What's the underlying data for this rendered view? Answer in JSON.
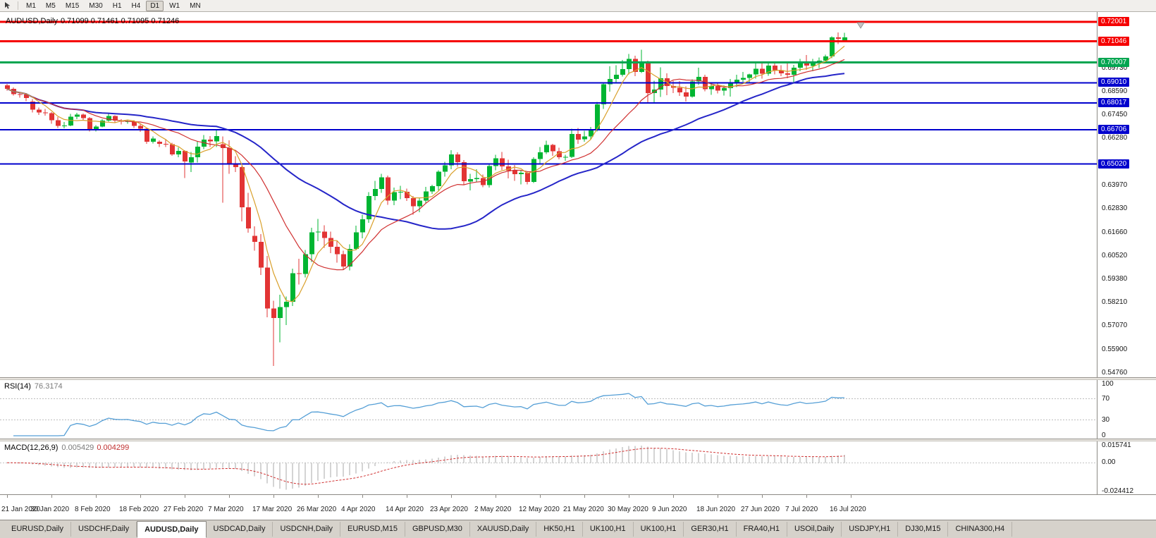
{
  "toolbar": {
    "timeframes": [
      "M1",
      "M5",
      "M15",
      "M30",
      "H1",
      "H4",
      "D1",
      "W1",
      "MN"
    ],
    "active": "D1"
  },
  "chart_header": {
    "symbol_info": "AUDUSD,Daily",
    "ohlc": "0.71099 0.71461 0.71095 0.71246"
  },
  "colors": {
    "bull": "#00b532",
    "bear": "#e23434",
    "ma_fast": "#d9a02b",
    "ma_mid": "#d03030",
    "ma_slow": "#2525c8",
    "rsi_line": "#559fd6",
    "macd_hist": "#a8a8a8",
    "macd_signal": "#d03030"
  },
  "levels": [
    {
      "label": "0.72001",
      "price": 0.72001,
      "color": "#f50000",
      "width": 3
    },
    {
      "label": "0.71046",
      "price": 0.71046,
      "color": "#f50000",
      "width": 3
    },
    {
      "label": "0.70007",
      "price": 0.70007,
      "color": "#00a550",
      "width": 3
    },
    {
      "label": "0.69010",
      "price": 0.6901,
      "color": "#0000cd",
      "width": 2
    },
    {
      "label": "0.68017",
      "price": 0.68017,
      "color": "#0000cd",
      "width": 2
    },
    {
      "label": "0.66706",
      "price": 0.66706,
      "color": "#0000cd",
      "width": 2
    },
    {
      "label": "0.65020",
      "price": 0.6502,
      "color": "#0000cd",
      "width": 2
    }
  ],
  "price_scale": [
    "0.69730",
    "0.68590",
    "0.67450",
    "0.66280",
    "0.63970",
    "0.62830",
    "0.61660",
    "0.60520",
    "0.59380",
    "0.58210",
    "0.57070",
    "0.55900",
    "0.54760"
  ],
  "rsi": {
    "name": "RSI(14)",
    "value": "76.3174",
    "scale": [
      "100",
      "70",
      "30",
      "0"
    ],
    "guides": [
      70,
      30
    ]
  },
  "macd": {
    "name": "MACD(12,26,9)",
    "main_value": "0.005429",
    "signal_value": "0.004299",
    "scale": [
      "0.015741",
      "0.00",
      "-0.024412"
    ]
  },
  "tabbar": {
    "active_index": 2,
    "tabs": [
      {
        "label": "EURUSD,Daily"
      },
      {
        "label": "USDCHF,Daily"
      },
      {
        "label": "AUDUSD,Daily"
      },
      {
        "label": "USDCAD,Daily"
      },
      {
        "label": "USDCNH,Daily"
      },
      {
        "label": "EURUSD,M15"
      },
      {
        "label": "GBPUSD,M30"
      },
      {
        "label": "XAUUSD,Daily"
      },
      {
        "label": "HK50,H1"
      },
      {
        "label": "UK100,H1"
      },
      {
        "label": "UK100,H1"
      },
      {
        "label": "GER30,H1"
      },
      {
        "label": "FRA40,H1"
      },
      {
        "label": "USOil,Daily"
      },
      {
        "label": "USDJPY,H1"
      },
      {
        "label": "DJ30,M15"
      },
      {
        "label": "CHINA300,H4"
      }
    ]
  },
  "chart_data": {
    "type": "candlestick",
    "title": "AUDUSD,Daily",
    "ylim": [
      0.5455,
      0.7249
    ],
    "rsi_range": [
      0,
      100
    ],
    "macd_range": [
      -0.024412,
      0.015741
    ],
    "date_labels": [
      "21 Jan 2020",
      "30 Jan 2020",
      "8 Feb 2020",
      "18 Feb 2020",
      "27 Feb 2020",
      "7 Mar 2020",
      "17 Mar 2020",
      "26 Mar 2020",
      "4 Apr 2020",
      "14 Apr 2020",
      "23 Apr 2020",
      "2 May 2020",
      "12 May 2020",
      "21 May 2020",
      "30 May 2020",
      "9 Jun 2020",
      "18 Jun 2020",
      "27 Jun 2020",
      "7 Jul 2020",
      "16 Jul 2020"
    ],
    "candles": [
      [
        0.6888,
        0.6895,
        0.6862,
        0.6872
      ],
      [
        0.6872,
        0.6878,
        0.6838,
        0.6845
      ],
      [
        0.6845,
        0.6855,
        0.6828,
        0.6843
      ],
      [
        0.6843,
        0.685,
        0.6811,
        0.6827
      ],
      [
        0.681,
        0.6822,
        0.6755,
        0.6769
      ],
      [
        0.6769,
        0.6779,
        0.6744,
        0.6756
      ],
      [
        0.6756,
        0.6772,
        0.674,
        0.6752
      ],
      [
        0.6752,
        0.6758,
        0.67,
        0.6717
      ],
      [
        0.6717,
        0.6733,
        0.668,
        0.669
      ],
      [
        0.669,
        0.6708,
        0.6678,
        0.6691
      ],
      [
        0.6691,
        0.6749,
        0.6688,
        0.6734
      ],
      [
        0.6734,
        0.6754,
        0.6723,
        0.6745
      ],
      [
        0.6745,
        0.675,
        0.6715,
        0.6727
      ],
      [
        0.6727,
        0.6733,
        0.6662,
        0.6671
      ],
      [
        0.6671,
        0.6694,
        0.6662,
        0.6686
      ],
      [
        0.6686,
        0.6722,
        0.6683,
        0.6716
      ],
      [
        0.6716,
        0.6748,
        0.671,
        0.6738
      ],
      [
        0.6738,
        0.6742,
        0.6705,
        0.6716
      ],
      [
        0.6716,
        0.6723,
        0.6697,
        0.6711
      ],
      [
        0.6711,
        0.6721,
        0.67,
        0.6712
      ],
      [
        0.6712,
        0.6717,
        0.668,
        0.669
      ],
      [
        0.669,
        0.6701,
        0.6661,
        0.6675
      ],
      [
        0.6675,
        0.6679,
        0.6601,
        0.6611
      ],
      [
        0.6611,
        0.6638,
        0.6603,
        0.6627
      ],
      [
        0.6612,
        0.6618,
        0.6585,
        0.6601
      ],
      [
        0.6601,
        0.6622,
        0.6586,
        0.66
      ],
      [
        0.66,
        0.6606,
        0.6542,
        0.6549
      ],
      [
        0.6549,
        0.6584,
        0.6536,
        0.6566
      ],
      [
        0.6566,
        0.6571,
        0.6434,
        0.6515
      ],
      [
        0.651,
        0.6561,
        0.6463,
        0.6536
      ],
      [
        0.6536,
        0.6611,
        0.6509,
        0.6587
      ],
      [
        0.6587,
        0.6645,
        0.6576,
        0.6623
      ],
      [
        0.6623,
        0.6639,
        0.6586,
        0.6614
      ],
      [
        0.6614,
        0.6671,
        0.6585,
        0.6639
      ],
      [
        0.66,
        0.6637,
        0.6313,
        0.6581
      ],
      [
        0.6581,
        0.6618,
        0.6454,
        0.65
      ],
      [
        0.65,
        0.654,
        0.6463,
        0.6487
      ],
      [
        0.6487,
        0.6492,
        0.622,
        0.629
      ],
      [
        0.629,
        0.6361,
        0.6165,
        0.6185
      ],
      [
        0.615,
        0.6197,
        0.6076,
        0.612
      ],
      [
        0.612,
        0.6158,
        0.5958,
        0.5994
      ],
      [
        0.5994,
        0.605,
        0.5749,
        0.5793
      ],
      [
        0.5793,
        0.583,
        0.551,
        0.5746
      ],
      [
        0.5746,
        0.586,
        0.5627,
        0.58
      ],
      [
        0.58,
        0.5852,
        0.5711,
        0.5825
      ],
      [
        0.5825,
        0.5988,
        0.5805,
        0.5966
      ],
      [
        0.5966,
        0.6036,
        0.591,
        0.5962
      ],
      [
        0.5962,
        0.608,
        0.5945,
        0.606
      ],
      [
        0.606,
        0.619,
        0.6021,
        0.6167
      ],
      [
        0.6167,
        0.6232,
        0.6123,
        0.617
      ],
      [
        0.617,
        0.6201,
        0.6091,
        0.6139
      ],
      [
        0.6139,
        0.6171,
        0.6065,
        0.6095
      ],
      [
        0.6095,
        0.6123,
        0.6018,
        0.606
      ],
      [
        0.606,
        0.6076,
        0.5981,
        0.5998
      ],
      [
        0.5998,
        0.6107,
        0.598,
        0.6086
      ],
      [
        0.6086,
        0.6199,
        0.6078,
        0.6167
      ],
      [
        0.6167,
        0.6254,
        0.6138,
        0.623
      ],
      [
        0.623,
        0.6364,
        0.6214,
        0.6345
      ],
      [
        0.6345,
        0.642,
        0.6325,
        0.638
      ],
      [
        0.638,
        0.6455,
        0.6361,
        0.6437
      ],
      [
        0.6437,
        0.6445,
        0.6302,
        0.6323
      ],
      [
        0.6323,
        0.6387,
        0.63,
        0.6364
      ],
      [
        0.6364,
        0.6395,
        0.6329,
        0.6365
      ],
      [
        0.6365,
        0.6382,
        0.632,
        0.6334
      ],
      [
        0.6334,
        0.6345,
        0.6254,
        0.6295
      ],
      [
        0.6295,
        0.6335,
        0.6266,
        0.6323
      ],
      [
        0.6323,
        0.639,
        0.631,
        0.6368
      ],
      [
        0.6368,
        0.64,
        0.6355,
        0.6393
      ],
      [
        0.6393,
        0.6472,
        0.6372,
        0.6465
      ],
      [
        0.6465,
        0.6513,
        0.6441,
        0.6495
      ],
      [
        0.6495,
        0.657,
        0.6476,
        0.655
      ],
      [
        0.655,
        0.6559,
        0.6489,
        0.6512
      ],
      [
        0.6512,
        0.6522,
        0.6402,
        0.6417
      ],
      [
        0.6417,
        0.6454,
        0.6372,
        0.6428
      ],
      [
        0.6428,
        0.6476,
        0.6414,
        0.6434
      ],
      [
        0.6434,
        0.6451,
        0.6389,
        0.6399
      ],
      [
        0.6399,
        0.6503,
        0.6386,
        0.6493
      ],
      [
        0.6493,
        0.6547,
        0.6472,
        0.653
      ],
      [
        0.653,
        0.6561,
        0.6473,
        0.649
      ],
      [
        0.649,
        0.6524,
        0.6432,
        0.647
      ],
      [
        0.647,
        0.6497,
        0.642,
        0.6452
      ],
      [
        0.6452,
        0.6472,
        0.6403,
        0.6459
      ],
      [
        0.6459,
        0.6466,
        0.6402,
        0.6414
      ],
      [
        0.6414,
        0.6536,
        0.641,
        0.6527
      ],
      [
        0.6527,
        0.6585,
        0.6506,
        0.656
      ],
      [
        0.656,
        0.6617,
        0.6552,
        0.6597
      ],
      [
        0.6597,
        0.6601,
        0.6543,
        0.6565
      ],
      [
        0.6565,
        0.6582,
        0.6525,
        0.6536
      ],
      [
        0.6536,
        0.6547,
        0.6519,
        0.6537
      ],
      [
        0.6537,
        0.6675,
        0.6532,
        0.665
      ],
      [
        0.665,
        0.668,
        0.6602,
        0.6623
      ],
      [
        0.6623,
        0.6666,
        0.6612,
        0.6638
      ],
      [
        0.6638,
        0.6684,
        0.6623,
        0.6667
      ],
      [
        0.6667,
        0.6808,
        0.6662,
        0.6796
      ],
      [
        0.6796,
        0.69,
        0.6772,
        0.6894
      ],
      [
        0.6894,
        0.6983,
        0.6857,
        0.692
      ],
      [
        0.692,
        0.6988,
        0.6903,
        0.694
      ],
      [
        0.694,
        0.7013,
        0.6932,
        0.6968
      ],
      [
        0.6968,
        0.7043,
        0.6942,
        0.7019
      ],
      [
        0.7019,
        0.7034,
        0.6933,
        0.6955
      ],
      [
        0.6955,
        0.7063,
        0.695,
        0.6999
      ],
      [
        0.6999,
        0.701,
        0.6799,
        0.6851
      ],
      [
        0.6851,
        0.6912,
        0.68,
        0.6868
      ],
      [
        0.6868,
        0.6977,
        0.6832,
        0.6923
      ],
      [
        0.6923,
        0.6948,
        0.6841,
        0.6885
      ],
      [
        0.6885,
        0.6912,
        0.6851,
        0.6877
      ],
      [
        0.6877,
        0.6909,
        0.6837,
        0.6854
      ],
      [
        0.6854,
        0.6884,
        0.681,
        0.6834
      ],
      [
        0.6834,
        0.6919,
        0.6829,
        0.6907
      ],
      [
        0.6907,
        0.6976,
        0.689,
        0.693
      ],
      [
        0.693,
        0.694,
        0.6859,
        0.687
      ],
      [
        0.687,
        0.6905,
        0.6842,
        0.6886
      ],
      [
        0.6886,
        0.6901,
        0.6849,
        0.6863
      ],
      [
        0.6863,
        0.6889,
        0.6839,
        0.6875
      ],
      [
        0.6875,
        0.692,
        0.6833,
        0.6903
      ],
      [
        0.6903,
        0.694,
        0.688,
        0.6916
      ],
      [
        0.6916,
        0.6954,
        0.6906,
        0.6925
      ],
      [
        0.6925,
        0.6946,
        0.6901,
        0.6943
      ],
      [
        0.6943,
        0.6998,
        0.6921,
        0.6971
      ],
      [
        0.6971,
        0.6997,
        0.6922,
        0.6946
      ],
      [
        0.6946,
        0.6999,
        0.6935,
        0.6986
      ],
      [
        0.6986,
        0.7001,
        0.6942,
        0.6963
      ],
      [
        0.6963,
        0.6988,
        0.6934,
        0.6948
      ],
      [
        0.6948,
        0.7,
        0.6923,
        0.694
      ],
      [
        0.694,
        0.699,
        0.6902,
        0.6975
      ],
      [
        0.6975,
        0.7019,
        0.6958,
        0.7003
      ],
      [
        0.7003,
        0.7037,
        0.6965,
        0.6985
      ],
      [
        0.6985,
        0.7018,
        0.6958,
        0.6996
      ],
      [
        0.6996,
        0.7025,
        0.6973,
        0.701
      ],
      [
        0.701,
        0.704,
        0.6996,
        0.703
      ],
      [
        0.703,
        0.713,
        0.7022,
        0.7125
      ],
      [
        0.7125,
        0.7148,
        0.7092,
        0.7118
      ],
      [
        0.71099,
        0.71461,
        0.71095,
        0.71246
      ]
    ],
    "overlays": [
      {
        "name": "sma-fast",
        "period": 5
      },
      {
        "name": "sma-mid",
        "period": 13
      },
      {
        "name": "sma-slow",
        "period": 34
      }
    ]
  }
}
